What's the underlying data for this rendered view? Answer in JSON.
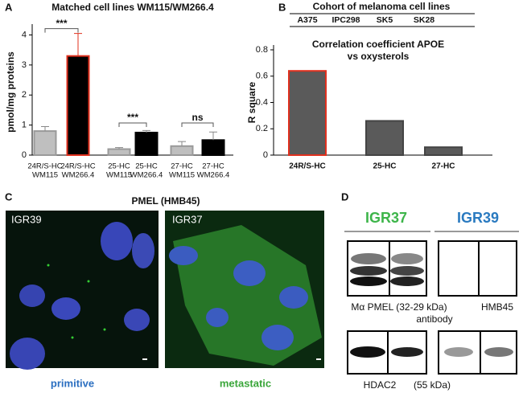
{
  "chart_data": [
    {
      "type": "bar",
      "panel": "A",
      "title": "Matched cell lines  WM115/WM266.4",
      "ylabel": "pmol/mg proteins",
      "categories": [
        [
          "24R/S-HC",
          "WM115"
        ],
        [
          "24R/S-HC",
          "WM266.4"
        ],
        [
          "25-HC",
          "WM115"
        ],
        [
          "25-HC",
          "WM266.4"
        ],
        [
          "27-HC",
          "WM115"
        ],
        [
          "27-HC",
          "WM266.4"
        ]
      ],
      "values": [
        0.8,
        3.3,
        0.2,
        0.75,
        0.3,
        0.5
      ],
      "errors": [
        0.15,
        0.75,
        0.05,
        0.07,
        0.15,
        0.27
      ],
      "colors": [
        "#bfbfbf",
        "#000000",
        "#bfbfbf",
        "#000000",
        "#bfbfbf",
        "#000000"
      ],
      "edgecolors": [
        "#9a9a9a",
        "#e0301e",
        "#9a9a9a",
        "#000000",
        "#9a9a9a",
        "#000000"
      ],
      "annotations": [
        "***",
        "***",
        "ns"
      ],
      "ylim": [
        0,
        4.2
      ],
      "yticks": [
        0,
        1,
        2,
        3,
        4
      ]
    },
    {
      "type": "bar",
      "panel": "B",
      "header": "Cohort of melanoma cell lines",
      "cohort": [
        "A375",
        "IPC298",
        "SK5",
        "SK28"
      ],
      "title": [
        "Correlation coefficient APOE",
        "vs oxysterols"
      ],
      "ylabel": "R square",
      "categories": [
        "24R/S-HC",
        "25-HC",
        "27-HC"
      ],
      "values": [
        0.64,
        0.26,
        0.06
      ],
      "colors": [
        "#5a5a5a",
        "#5a5a5a",
        "#5a5a5a"
      ],
      "edgecolors": [
        "#e0301e",
        "#444444",
        "#444444"
      ],
      "ylim": [
        0,
        0.8
      ],
      "yticks": [
        0,
        0.2,
        0.4,
        0.6,
        0.8
      ]
    }
  ],
  "panel_c": {
    "letter": "C",
    "title": "PMEL (HMB45)",
    "left_label": "IGR39",
    "right_label": "IGR37",
    "left_caption": "primitive",
    "right_caption": "metastatic"
  },
  "panel_d": {
    "letter": "D",
    "left_header": "IGR37",
    "right_header": "IGR39",
    "pmel_label": "Mα PMEL (32-29 kDa)",
    "hmb_label": "HMB45",
    "antibody": "antibody",
    "hdac_label": "HDAC2",
    "hdac_size": "(55 kDa)"
  }
}
